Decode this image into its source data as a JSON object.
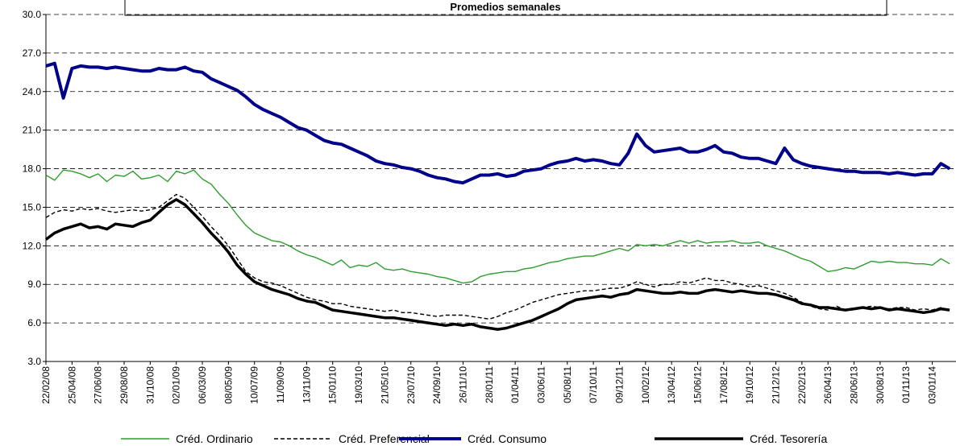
{
  "chart_data": {
    "type": "line",
    "title": "Promedios semanales",
    "categories": [
      "22/02/08",
      null,
      null,
      "25/04/08",
      null,
      null,
      "27/06/08",
      null,
      null,
      "29/08/08",
      null,
      null,
      "31/10/08",
      null,
      null,
      "02/01/09",
      null,
      null,
      "06/03/09",
      null,
      null,
      "08/05/09",
      null,
      null,
      "10/07/09",
      null,
      null,
      "11/09/09",
      null,
      null,
      "13/11/09",
      null,
      null,
      "15/01/10",
      null,
      null,
      "19/03/10",
      null,
      null,
      "21/05/10",
      null,
      null,
      "23/07/10",
      null,
      null,
      "24/09/10",
      null,
      null,
      "26/11/10",
      null,
      null,
      "28/01/11",
      null,
      null,
      "01/04/11",
      null,
      null,
      "03/06/11",
      null,
      null,
      "05/08/11",
      null,
      null,
      "07/10/11",
      null,
      null,
      "09/12/11",
      null,
      null,
      "10/02/12",
      null,
      null,
      "13/04/12",
      null,
      null,
      "15/06/12",
      null,
      null,
      "17/08/12",
      null,
      null,
      "19/10/12",
      null,
      null,
      "21/12/12",
      null,
      null,
      "22/02/13",
      null,
      null,
      "26/04/13",
      null,
      null,
      "28/06/13",
      null,
      null,
      "30/08/13",
      null,
      null,
      "01/11/13",
      null,
      null,
      "03/01/14",
      null,
      null
    ],
    "series": [
      {
        "name": "Créd. Ordinario",
        "color": "#2e9e2e",
        "style": "solid",
        "weight": "thin",
        "values": [
          17.5,
          17.1,
          17.9,
          17.8,
          17.6,
          17.3,
          17.6,
          17.0,
          17.5,
          17.4,
          17.8,
          17.2,
          17.3,
          17.5,
          17.0,
          17.8,
          17.6,
          17.9,
          17.2,
          16.8,
          16.0,
          15.3,
          14.4,
          13.6,
          13.0,
          12.7,
          12.4,
          12.3,
          12.0,
          11.6,
          11.3,
          11.1,
          10.8,
          10.5,
          10.9,
          10.3,
          10.5,
          10.4,
          10.7,
          10.2,
          10.1,
          10.2,
          10.0,
          9.9,
          9.8,
          9.6,
          9.5,
          9.3,
          9.1,
          9.2,
          9.6,
          9.8,
          9.9,
          10.0,
          10.0,
          10.2,
          10.3,
          10.5,
          10.7,
          10.8,
          11.0,
          11.1,
          11.2,
          11.2,
          11.4,
          11.6,
          11.8,
          11.6,
          12.1,
          12.0,
          12.1,
          12.0,
          12.2,
          12.4,
          12.2,
          12.4,
          12.2,
          12.3,
          12.3,
          12.4,
          12.2,
          12.2,
          12.3,
          12.0,
          11.8,
          11.6,
          11.3,
          11.0,
          10.8,
          10.4,
          10.0,
          10.1,
          10.3,
          10.2,
          10.5,
          10.8,
          10.7,
          10.8,
          10.7,
          10.7,
          10.6,
          10.6,
          10.5,
          11.0,
          10.6
        ]
      },
      {
        "name": "Créd. Preferencial",
        "color": "#000000",
        "style": "dashed",
        "weight": "thin",
        "values": [
          14.2,
          14.6,
          14.8,
          14.7,
          14.9,
          14.8,
          14.9,
          14.7,
          14.6,
          14.7,
          14.8,
          14.7,
          14.8,
          15.0,
          15.5,
          16.0,
          15.7,
          15.0,
          14.3,
          13.5,
          12.8,
          12.0,
          11.0,
          10.0,
          9.5,
          9.2,
          9.1,
          8.9,
          8.6,
          8.3,
          8.0,
          7.8,
          7.7,
          7.5,
          7.5,
          7.3,
          7.2,
          7.1,
          7.0,
          6.9,
          7.0,
          6.8,
          6.8,
          6.7,
          6.6,
          6.5,
          6.6,
          6.6,
          6.6,
          6.5,
          6.4,
          6.3,
          6.5,
          6.8,
          7.0,
          7.3,
          7.6,
          7.8,
          8.0,
          8.2,
          8.3,
          8.4,
          8.5,
          8.5,
          8.6,
          8.7,
          8.7,
          8.9,
          9.2,
          9.0,
          8.8,
          9.0,
          9.0,
          9.2,
          9.1,
          9.3,
          9.5,
          9.3,
          9.3,
          9.1,
          9.0,
          8.8,
          8.9,
          8.7,
          8.5,
          8.3,
          8.0,
          7.6,
          7.3,
          7.1,
          7.0,
          7.3,
          7.0,
          7.0,
          7.2,
          7.3,
          7.2,
          7.1,
          7.2,
          7.2,
          7.0,
          7.1,
          7.0,
          7.2,
          7.0
        ]
      },
      {
        "name": "Créd. Consumo",
        "color": "#00008b",
        "style": "solid",
        "weight": "bold",
        "values": [
          26.0,
          26.2,
          23.5,
          25.8,
          26.0,
          25.9,
          25.9,
          25.8,
          25.9,
          25.8,
          25.7,
          25.6,
          25.6,
          25.8,
          25.7,
          25.7,
          25.9,
          25.6,
          25.5,
          25.0,
          24.7,
          24.4,
          24.1,
          23.6,
          23.0,
          22.6,
          22.3,
          22.0,
          21.6,
          21.2,
          21.0,
          20.6,
          20.2,
          20.0,
          19.9,
          19.6,
          19.3,
          19.0,
          18.6,
          18.4,
          18.3,
          18.1,
          18.0,
          17.8,
          17.5,
          17.3,
          17.2,
          17.0,
          16.9,
          17.2,
          17.5,
          17.5,
          17.6,
          17.4,
          17.5,
          17.8,
          17.9,
          18.0,
          18.3,
          18.5,
          18.6,
          18.8,
          18.6,
          18.7,
          18.6,
          18.4,
          18.3,
          19.2,
          20.7,
          19.8,
          19.3,
          19.4,
          19.5,
          19.6,
          19.3,
          19.3,
          19.5,
          19.8,
          19.3,
          19.2,
          18.9,
          18.8,
          18.8,
          18.6,
          18.4,
          19.6,
          18.7,
          18.4,
          18.2,
          18.1,
          18.0,
          17.9,
          17.8,
          17.8,
          17.7,
          17.7,
          17.7,
          17.6,
          17.7,
          17.6,
          17.5,
          17.6,
          17.6,
          18.4,
          18.0
        ]
      },
      {
        "name": "Créd. Tesorería",
        "color": "#000000",
        "style": "solid",
        "weight": "bold",
        "values": [
          12.5,
          13.0,
          13.3,
          13.5,
          13.7,
          13.4,
          13.5,
          13.3,
          13.7,
          13.6,
          13.5,
          13.8,
          14.0,
          14.6,
          15.2,
          15.6,
          15.2,
          14.5,
          13.8,
          13.0,
          12.3,
          11.5,
          10.5,
          9.8,
          9.2,
          8.9,
          8.6,
          8.4,
          8.2,
          7.9,
          7.7,
          7.6,
          7.3,
          7.0,
          6.9,
          6.8,
          6.7,
          6.6,
          6.5,
          6.4,
          6.4,
          6.3,
          6.2,
          6.1,
          6.0,
          5.9,
          5.8,
          5.9,
          5.8,
          5.9,
          5.7,
          5.6,
          5.5,
          5.6,
          5.8,
          6.0,
          6.2,
          6.5,
          6.8,
          7.1,
          7.5,
          7.8,
          7.9,
          8.0,
          8.1,
          8.0,
          8.2,
          8.3,
          8.6,
          8.5,
          8.4,
          8.3,
          8.3,
          8.4,
          8.3,
          8.3,
          8.5,
          8.6,
          8.5,
          8.4,
          8.5,
          8.4,
          8.3,
          8.3,
          8.2,
          8.0,
          7.8,
          7.5,
          7.4,
          7.2,
          7.2,
          7.1,
          7.0,
          7.1,
          7.2,
          7.1,
          7.2,
          7.0,
          7.1,
          7.0,
          6.9,
          6.8,
          6.9,
          7.1,
          7.0
        ]
      }
    ],
    "ylim": [
      3,
      30
    ],
    "yticks": [
      {
        "value": 3,
        "label": "3.0"
      },
      {
        "value": 6,
        "label": "6.0"
      },
      {
        "value": 9,
        "label": "9.0"
      },
      {
        "value": 12,
        "label": "12.0"
      },
      {
        "value": 15,
        "label": "15.0"
      },
      {
        "value": 18,
        "label": "18.0"
      },
      {
        "value": 21,
        "label": "21.0"
      },
      {
        "value": 24,
        "label": "24.0"
      },
      {
        "value": 27,
        "label": "27.0"
      },
      {
        "value": 30,
        "label": "30.0"
      }
    ],
    "grid": true
  }
}
